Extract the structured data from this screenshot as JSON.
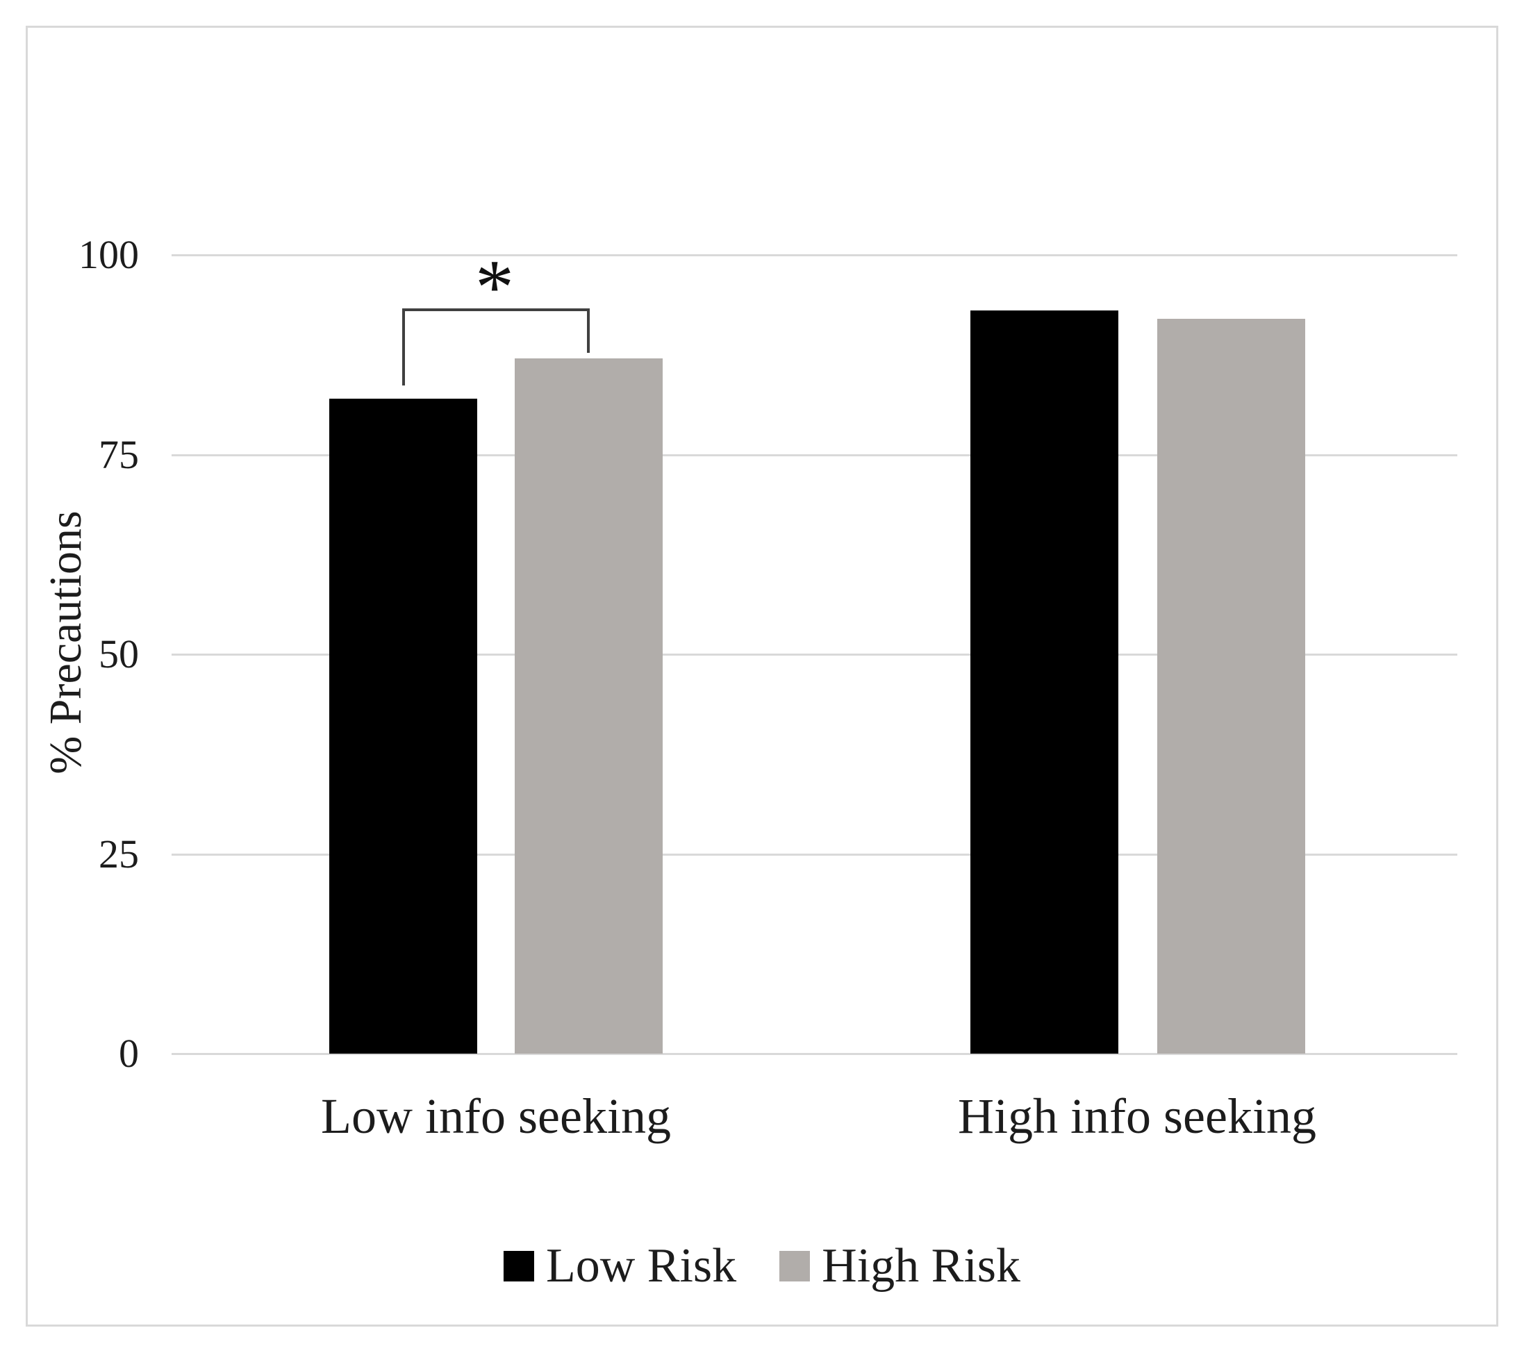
{
  "chart_data": {
    "type": "bar",
    "title": "",
    "categories": [
      "Low info seeking",
      "High info seeking"
    ],
    "series": [
      {
        "name": "Low Risk",
        "color": "#000000",
        "values": [
          82,
          93
        ]
      },
      {
        "name": "High Risk",
        "color": "#b1adaa",
        "values": [
          87,
          92
        ]
      }
    ],
    "xlabel": "",
    "ylabel": "% Precautions",
    "ylim": [
      0,
      100
    ],
    "yticks": [
      0,
      25,
      50,
      75,
      100
    ],
    "grid": true,
    "gridline_color": "#d9d9d9",
    "legend_position": "bottom",
    "annotations": [
      {
        "type": "significance-bracket",
        "text": "*",
        "category": "Low info seeking",
        "between_series": [
          "Low Risk",
          "High Risk"
        ]
      }
    ]
  },
  "colors": {
    "frame_border": "#d9d9d9",
    "bracket": "#404040",
    "axis_text": "#1c1c1c",
    "background": "#ffffff"
  }
}
